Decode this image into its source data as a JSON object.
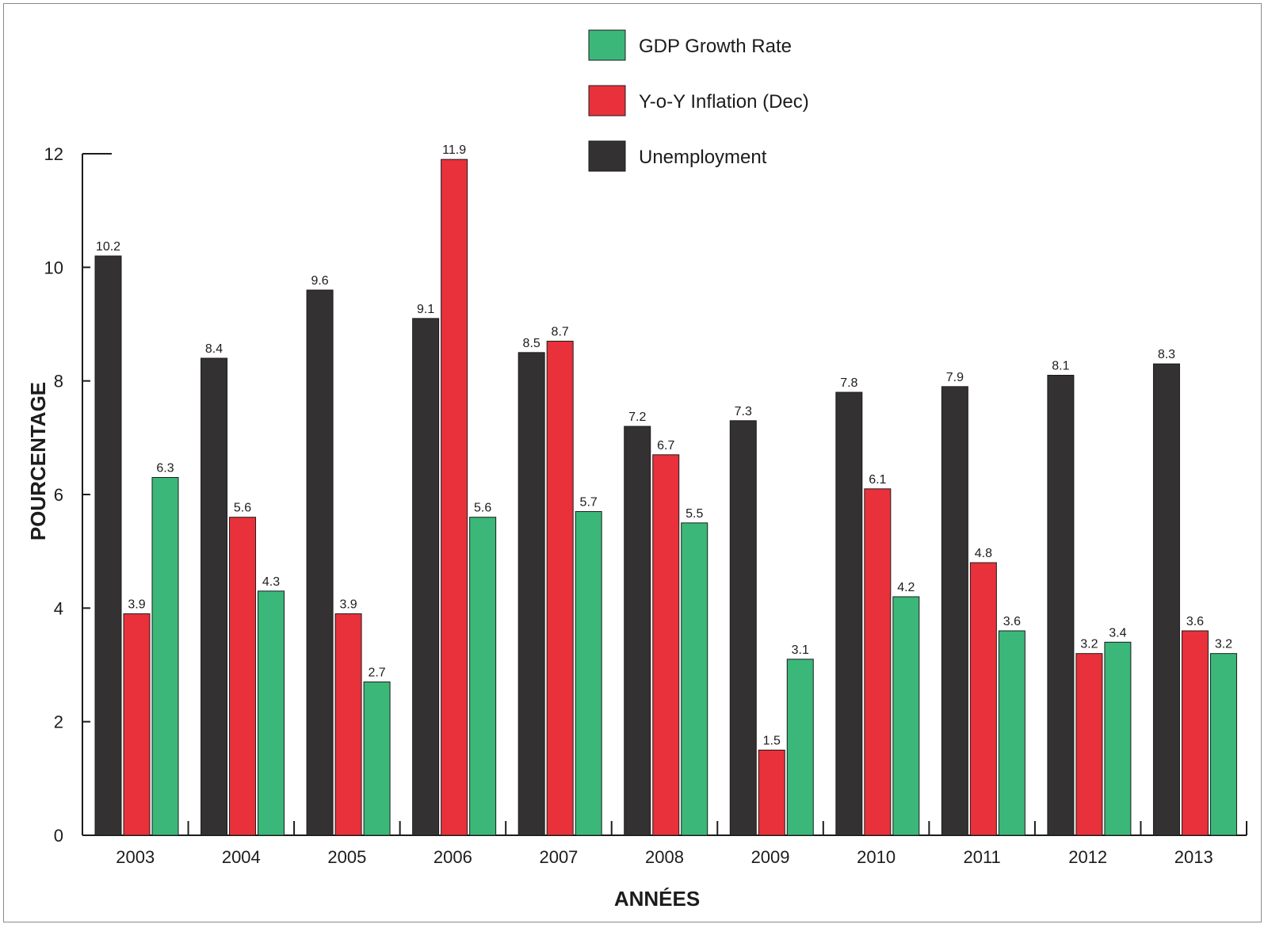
{
  "chart_data": {
    "type": "bar",
    "title": "",
    "xlabel": "ANNÉES",
    "ylabel": "POURCENTAGE",
    "ylim": [
      0,
      12
    ],
    "yticks": [
      0,
      2,
      4,
      6,
      8,
      10,
      12
    ],
    "grid": false,
    "legend_position": "top-center",
    "categories": [
      "2003",
      "2004",
      "2005",
      "2006",
      "2007",
      "2008",
      "2009",
      "2010",
      "2011",
      "2012",
      "2013"
    ],
    "series": [
      {
        "name": "Unemployment",
        "color": "#333132",
        "values": [
          10.2,
          8.4,
          9.6,
          9.1,
          8.5,
          7.2,
          7.3,
          7.8,
          7.9,
          8.1,
          8.3
        ],
        "labels": [
          "10.2",
          "8.4",
          "9.6",
          "9.1",
          "8.5",
          "7.2",
          "7.3",
          "7.8",
          "7.9",
          "8.1",
          "8.3"
        ]
      },
      {
        "name": "Y-o-Y Inflation (Dec)",
        "color": "#e8313a",
        "values": [
          3.9,
          5.6,
          3.9,
          11.9,
          8.7,
          6.7,
          1.5,
          6.1,
          4.8,
          3.2,
          3.6
        ],
        "labels": [
          "3.9",
          "5.6",
          "3.9",
          "11.9",
          "8.7",
          "6.7",
          "1.5",
          "6.1",
          "4.8",
          "3.2",
          "3.6"
        ]
      },
      {
        "name": "GDP Growth Rate",
        "color": "#3bb779",
        "values": [
          6.3,
          4.3,
          2.7,
          5.6,
          5.7,
          5.5,
          3.1,
          4.2,
          3.6,
          3.4,
          3.2
        ],
        "labels": [
          "6.3",
          "4.3",
          "2.7",
          "5.6",
          "5.7",
          "5.5",
          "3.1",
          "4.2",
          "3.6",
          "3.4",
          "3.2"
        ]
      }
    ],
    "legend_order": [
      "GDP Growth Rate",
      "Y-o-Y Inflation (Dec)",
      "Unemployment"
    ]
  }
}
